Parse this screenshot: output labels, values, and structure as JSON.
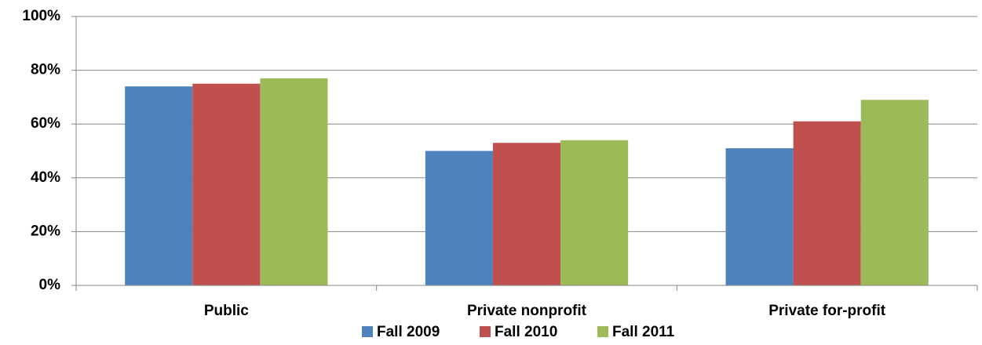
{
  "chart_data": {
    "type": "bar",
    "categories": [
      "Public",
      "Private nonprofit",
      "Private for-profit"
    ],
    "series": [
      {
        "name": "Fall 2009",
        "color": "#4f81bd",
        "values": [
          74,
          50,
          51
        ]
      },
      {
        "name": "Fall 2010",
        "color": "#c0504d",
        "values": [
          75,
          53,
          61
        ]
      },
      {
        "name": "Fall 2011",
        "color": "#9bbb59",
        "values": [
          77,
          54,
          69
        ]
      }
    ],
    "ylim": [
      0,
      100
    ],
    "yticks": [
      {
        "value": 0,
        "label": "0%"
      },
      {
        "value": 20,
        "label": "20%"
      },
      {
        "value": 40,
        "label": "40%"
      },
      {
        "value": 60,
        "label": "60%"
      },
      {
        "value": 80,
        "label": "80%"
      },
      {
        "value": 100,
        "label": "100%"
      }
    ],
    "grid": true,
    "legend": "bottom"
  }
}
